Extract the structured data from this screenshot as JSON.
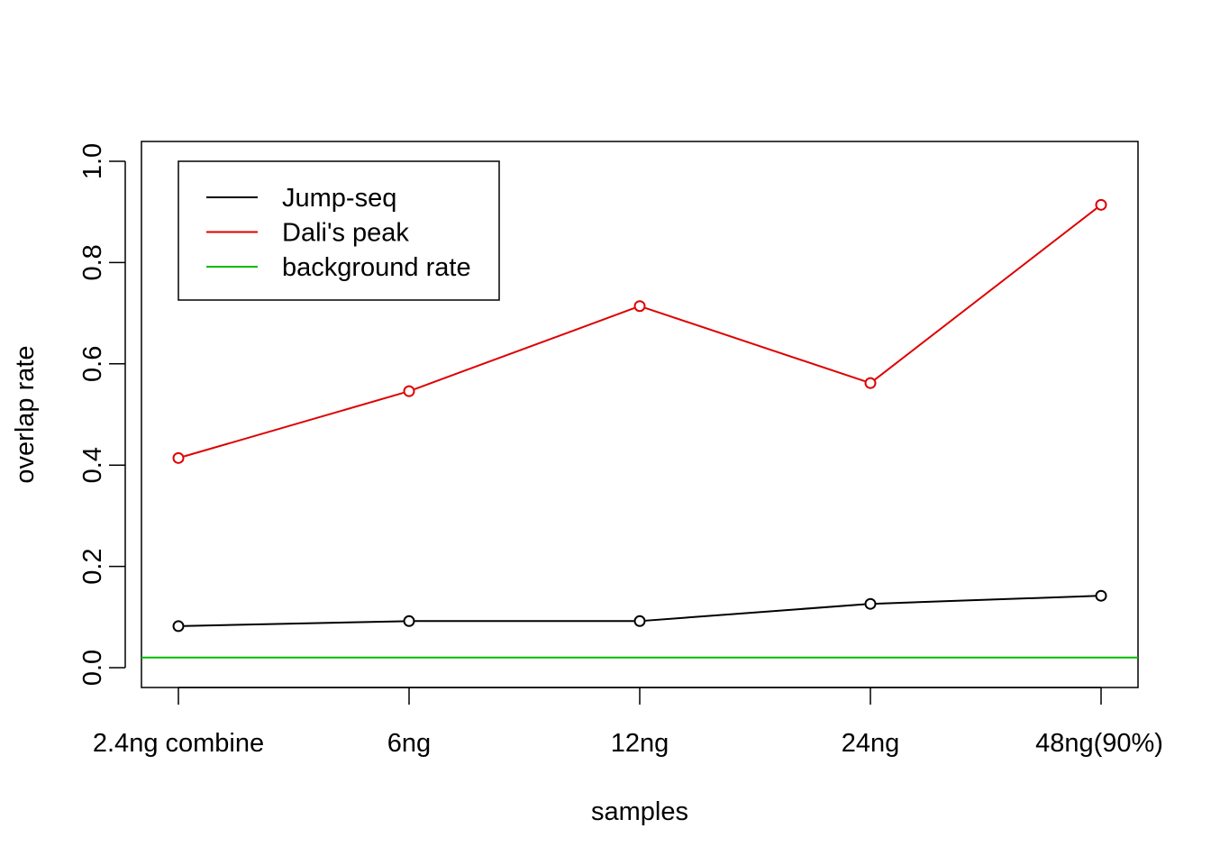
{
  "chart_data": {
    "type": "line",
    "title": "",
    "xlabel": "samples",
    "ylabel": "overlap rate",
    "categories": [
      "2.4ng combine",
      "6ng",
      "12ng",
      "24ng",
      "48ng(90%)"
    ],
    "ylim": [
      0,
      1
    ],
    "yticks": [
      "0.0",
      "0.2",
      "0.4",
      "0.6",
      "0.8",
      "1.0"
    ],
    "grid": false,
    "legend_position": "top-left",
    "series": [
      {
        "name": "Jump-seq",
        "color": "#000000",
        "values": [
          0.082,
          0.092,
          0.092,
          0.126,
          0.142
        ],
        "markers": true
      },
      {
        "name": "Dali's peak",
        "color": "#df0000",
        "values": [
          0.414,
          0.546,
          0.714,
          0.562,
          0.914
        ],
        "markers": true
      }
    ],
    "reference_lines": [
      {
        "name": "background rate",
        "color": "#00bb00",
        "value": 0.02
      }
    ]
  }
}
